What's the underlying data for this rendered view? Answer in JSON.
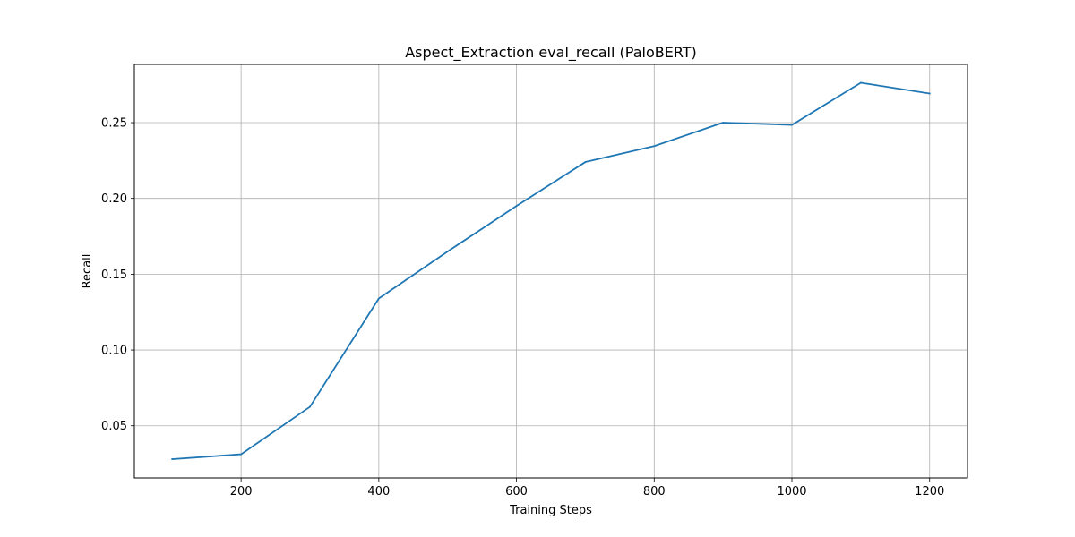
{
  "chart_data": {
    "type": "line",
    "title": "Aspect_Extraction eval_recall (PaloBERT)",
    "xlabel": "Training Steps",
    "ylabel": "Recall",
    "xlim": [
      45,
      1255
    ],
    "ylim": [
      0.0156,
      0.2884
    ],
    "xticks": [
      200,
      400,
      600,
      800,
      1000,
      1200
    ],
    "yticks": [
      0.05,
      0.1,
      0.15,
      0.2,
      0.25
    ],
    "ytick_labels": [
      "0.05",
      "0.10",
      "0.15",
      "0.20",
      "0.25"
    ],
    "grid": true,
    "series": [
      {
        "color": "#1f77b4",
        "x": [
          100,
          200,
          300,
          400,
          500,
          600,
          700,
          800,
          900,
          1000,
          1100,
          1200
        ],
        "y": [
          0.028,
          0.0312,
          0.0625,
          0.134,
          0.165,
          0.195,
          0.224,
          0.2345,
          0.25,
          0.2485,
          0.2763,
          0.2692
        ]
      }
    ]
  }
}
